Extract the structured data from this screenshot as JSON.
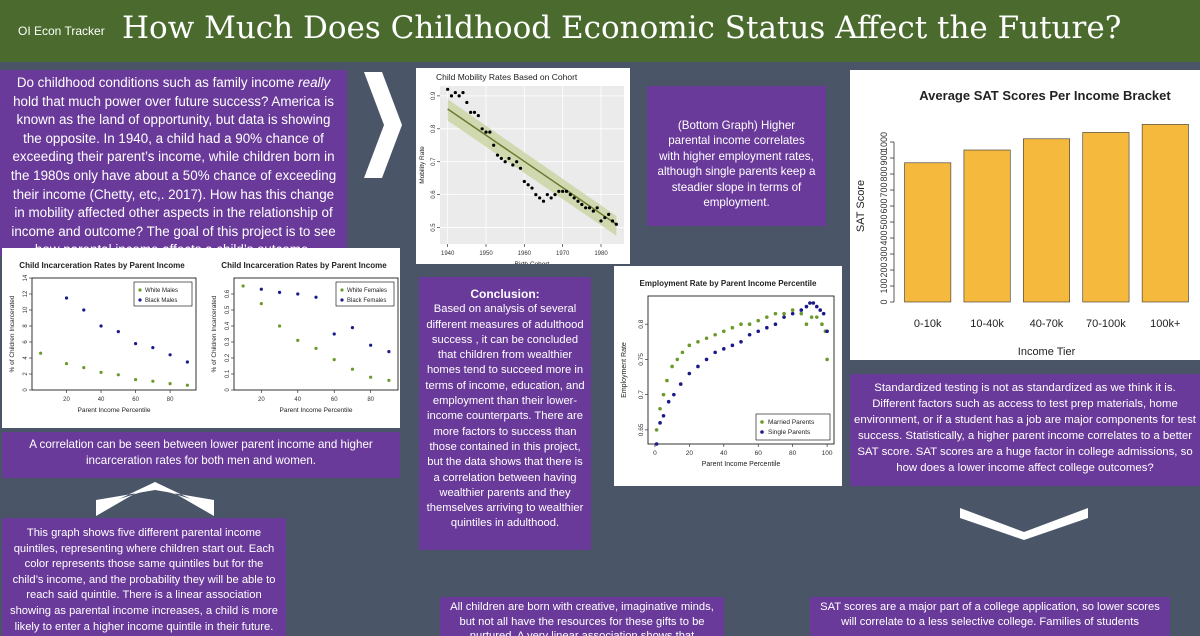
{
  "header": {
    "brand": "OI Econ Tracker",
    "title": "How Much Does Childhood Economic Status Affect the Future?"
  },
  "intro": {
    "before": "Do childhood conditions such as family income ",
    "emph": "really",
    "after": " hold that much power over future success? America is known as the land of opportunity, but data is showing the opposite. In 1940, a child had a 90% chance of exceeding their parent’s income, while children born in the 1980s only have about a 50% chance of exceeding their income (Chetty, etc,. 2017). How has this change in mobility affected other aspects in the relationship of income and outcome? The goal of this project is to see how parental income affects a child’s outcome."
  },
  "mobility_note": "(Bottom Graph) Higher parental income correlates with higher employment rates, although single parents keep a steadier slope in terms of employment.",
  "incarceration_caption": "A correlation can be seen between lower parent income and higher incarceration rates for both men and women.",
  "quintile_note": "This graph shows five different parental income quintiles, representing where children start out. Each color represents those same quintiles but for the child’s income, and the probability they will be able to reach said quintile. There is a linear association showing as parental income increases, a child is more likely to enter a higher income quintile in their future.",
  "conclusion": {
    "heading": "Conclusion:",
    "body": "Based on analysis of several different measures of adulthood success , it can be concluded that children from wealthier homes tend to succeed more in terms of income, education, and employment than their lower-income counterparts. There are more factors to success than those contained in this project, but the data shows that there is a correlation between having wealthier parents and they themselves arriving to wealthier quintiles in adulthood."
  },
  "gifts_note": "All children are born with creative, imaginative minds, but not all have the resources for these gifts to be nurtured. A very linear association shows that",
  "sat_note": "Standardized testing is not as standardized as we think it is. Different factors such as access to test prep materials, home environment, or if a student has a job are major components for test success. Statistically, a higher parent income correlates to a better SAT score. SAT scores are a huge factor in college admissions, so how does a lower income affect college outcomes?",
  "college_note": "SAT scores are a major part of a college application, so lower scores will correlate to a less selective college. Families of students",
  "colors": {
    "purple": "#6a3a9a",
    "header_green": "#4a6b2d",
    "background": "#4a5568",
    "bar_orange": "#f5b93d",
    "series_green": "#6a9a2a",
    "series_navy": "#1a1a8a"
  },
  "arrow_icons": [
    "chevron-right-icon",
    "chevron-up-icon",
    "chevron-down-icon"
  ],
  "chart_data": [
    {
      "type": "scatter",
      "title": "Child Mobility Rates Based on Cohort",
      "xlabel": "Birth Cohort",
      "ylabel": "Mobility Rate",
      "xlim": [
        1938,
        1986
      ],
      "ylim": [
        0.45,
        0.93
      ],
      "xticks": [
        1940,
        1950,
        1960,
        1970,
        1980
      ],
      "yticks": [
        0.5,
        0.6,
        0.7,
        0.8,
        0.9
      ],
      "trend": [
        [
          1940,
          0.86
        ],
        [
          1984,
          0.51
        ]
      ],
      "x": [
        1940,
        1941,
        1942,
        1943,
        1944,
        1945,
        1946,
        1947,
        1948,
        1949,
        1950,
        1951,
        1952,
        1953,
        1954,
        1955,
        1956,
        1957,
        1958,
        1959,
        1960,
        1961,
        1962,
        1963,
        1964,
        1965,
        1966,
        1967,
        1968,
        1969,
        1970,
        1971,
        1972,
        1973,
        1974,
        1975,
        1976,
        1977,
        1978,
        1979,
        1980,
        1981,
        1982,
        1983,
        1984
      ],
      "y": [
        0.92,
        0.9,
        0.91,
        0.9,
        0.91,
        0.88,
        0.85,
        0.85,
        0.84,
        0.8,
        0.79,
        0.79,
        0.75,
        0.72,
        0.71,
        0.7,
        0.71,
        0.69,
        0.7,
        0.68,
        0.64,
        0.63,
        0.62,
        0.6,
        0.59,
        0.58,
        0.6,
        0.59,
        0.6,
        0.61,
        0.61,
        0.61,
        0.6,
        0.59,
        0.58,
        0.57,
        0.56,
        0.56,
        0.55,
        0.56,
        0.52,
        0.53,
        0.54,
        0.52,
        0.51
      ]
    },
    {
      "type": "bar",
      "title": "Average SAT Scores Per Income Bracket",
      "xlabel": "Income Tier",
      "ylabel": "SAT Score",
      "categories": [
        "0-10k",
        "10-40k",
        "40-70k",
        "70-100k",
        "100k+"
      ],
      "values": [
        870,
        950,
        1020,
        1060,
        1110
      ],
      "ylim": [
        0,
        1200
      ],
      "yticks": [
        0,
        100,
        200,
        300,
        400,
        500,
        600,
        700,
        800,
        900,
        1000
      ]
    },
    {
      "type": "scatter",
      "title": "Child Incarceration Rates by Parent Income",
      "xlabel": "Parent Income Percentile",
      "ylabel": "% of Children Incarcerated",
      "xlim": [
        0,
        95
      ],
      "ylim": [
        0,
        14
      ],
      "xticks": [
        20,
        40,
        60,
        80
      ],
      "yticks": [
        0,
        2,
        4,
        6,
        8,
        10,
        12,
        14
      ],
      "legend": "top-right",
      "series": [
        {
          "name": "White Males",
          "x": [
            5,
            20,
            30,
            40,
            50,
            60,
            70,
            80,
            90
          ],
          "y": [
            4.6,
            3.3,
            2.8,
            2.2,
            1.9,
            1.3,
            1.1,
            0.8,
            0.6
          ]
        },
        {
          "name": "Black Males",
          "x": [
            20,
            30,
            40,
            50,
            60,
            70,
            80,
            90
          ],
          "y": [
            11.5,
            10.0,
            8.0,
            7.3,
            5.8,
            5.3,
            4.4,
            3.5
          ]
        }
      ]
    },
    {
      "type": "scatter",
      "title": "Child Incarceration Rates by Parent Income",
      "xlabel": "Parent Income Percentile",
      "ylabel": "% of Children Incarcerated",
      "xlim": [
        5,
        95
      ],
      "ylim": [
        0,
        0.7
      ],
      "xticks": [
        20,
        40,
        60,
        80
      ],
      "yticks": [
        0.0,
        0.1,
        0.2,
        0.3,
        0.4,
        0.5,
        0.6
      ],
      "legend": "top-right",
      "series": [
        {
          "name": "White Females",
          "x": [
            10,
            20,
            30,
            40,
            50,
            60,
            70,
            80,
            90
          ],
          "y": [
            0.65,
            0.54,
            0.4,
            0.31,
            0.26,
            0.19,
            0.13,
            0.08,
            0.06
          ]
        },
        {
          "name": "Black Females",
          "x": [
            20,
            30,
            40,
            50,
            60,
            70,
            80,
            90
          ],
          "y": [
            0.63,
            0.61,
            0.6,
            0.58,
            0.35,
            0.39,
            0.28,
            0.24
          ]
        }
      ]
    },
    {
      "type": "scatter",
      "title": "Employment Rate by Parent Income Percentile",
      "xlabel": "Parent Income Percentile",
      "ylabel": "Employment Rate",
      "xlim": [
        -4,
        104
      ],
      "ylim": [
        0.63,
        0.84
      ],
      "xticks": [
        0,
        20,
        40,
        60,
        80,
        100
      ],
      "yticks": [
        0.65,
        0.7,
        0.75,
        0.8
      ],
      "legend": "bottom-right",
      "series": [
        {
          "name": "Married Parents",
          "x": [
            1,
            3,
            5,
            7,
            10,
            13,
            16,
            20,
            25,
            30,
            35,
            40,
            45,
            50,
            55,
            60,
            65,
            70,
            75,
            80,
            85,
            88,
            91,
            94,
            97,
            99,
            100
          ],
          "y": [
            0.65,
            0.68,
            0.7,
            0.72,
            0.74,
            0.75,
            0.76,
            0.77,
            0.775,
            0.78,
            0.785,
            0.79,
            0.795,
            0.8,
            0.8,
            0.805,
            0.81,
            0.815,
            0.815,
            0.82,
            0.815,
            0.8,
            0.81,
            0.81,
            0.8,
            0.79,
            0.75
          ]
        },
        {
          "name": "Single Parents",
          "x": [
            1,
            3,
            5,
            8,
            11,
            15,
            20,
            25,
            30,
            35,
            40,
            45,
            50,
            55,
            60,
            65,
            70,
            75,
            80,
            85,
            88,
            90,
            92,
            94,
            96,
            98,
            100
          ],
          "y": [
            0.63,
            0.66,
            0.67,
            0.69,
            0.7,
            0.715,
            0.73,
            0.74,
            0.75,
            0.76,
            0.765,
            0.77,
            0.775,
            0.785,
            0.79,
            0.795,
            0.8,
            0.81,
            0.815,
            0.82,
            0.825,
            0.83,
            0.83,
            0.825,
            0.82,
            0.815,
            0.79
          ]
        }
      ]
    }
  ]
}
